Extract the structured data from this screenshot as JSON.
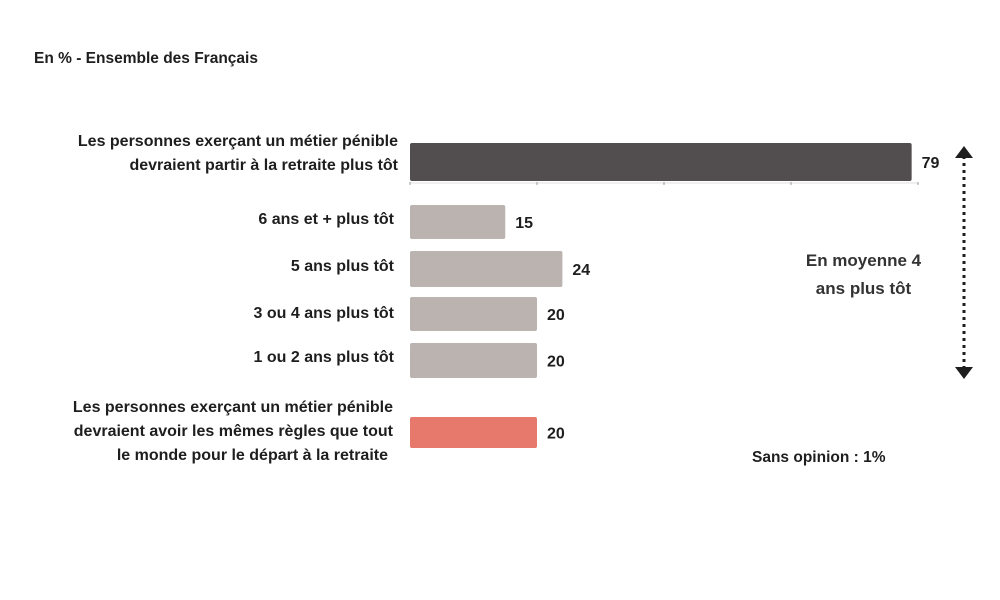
{
  "subtitle": "En % - Ensemble des Français",
  "annotation": {
    "line1": "En moyenne 4",
    "line2": "ans plus tôt"
  },
  "no_opinion": "Sans opinion : 1%",
  "colors": {
    "main": "#524e4f",
    "sub": "#bab3af",
    "accent": "#e7786c",
    "axis": "#9a9a9a"
  },
  "chart_data": {
    "type": "bar",
    "orientation": "horizontal",
    "title": "",
    "xlabel": "",
    "ylabel": "",
    "xlim": [
      0,
      80
    ],
    "grid": false,
    "categories": [
      [
        "Les personnes exerçant un métier pénible",
        "devraient partir à la retraite plus tôt"
      ],
      [
        "6 ans et + plus tôt"
      ],
      [
        "5 ans plus tôt"
      ],
      [
        "3 ou 4 ans plus tôt"
      ],
      [
        "1 ou 2 ans plus tôt"
      ],
      [
        "Les personnes exerçant un métier pénible",
        "devraient avoir les mêmes règles que tout",
        "le monde pour le départ à la retraite"
      ]
    ],
    "values": [
      79,
      15,
      24,
      20,
      20,
      20
    ],
    "value_labels": [
      "79",
      "15",
      "24",
      "20",
      "20",
      "20"
    ],
    "bar_roles": [
      "main",
      "sub",
      "sub",
      "sub",
      "sub",
      "accent"
    ]
  }
}
